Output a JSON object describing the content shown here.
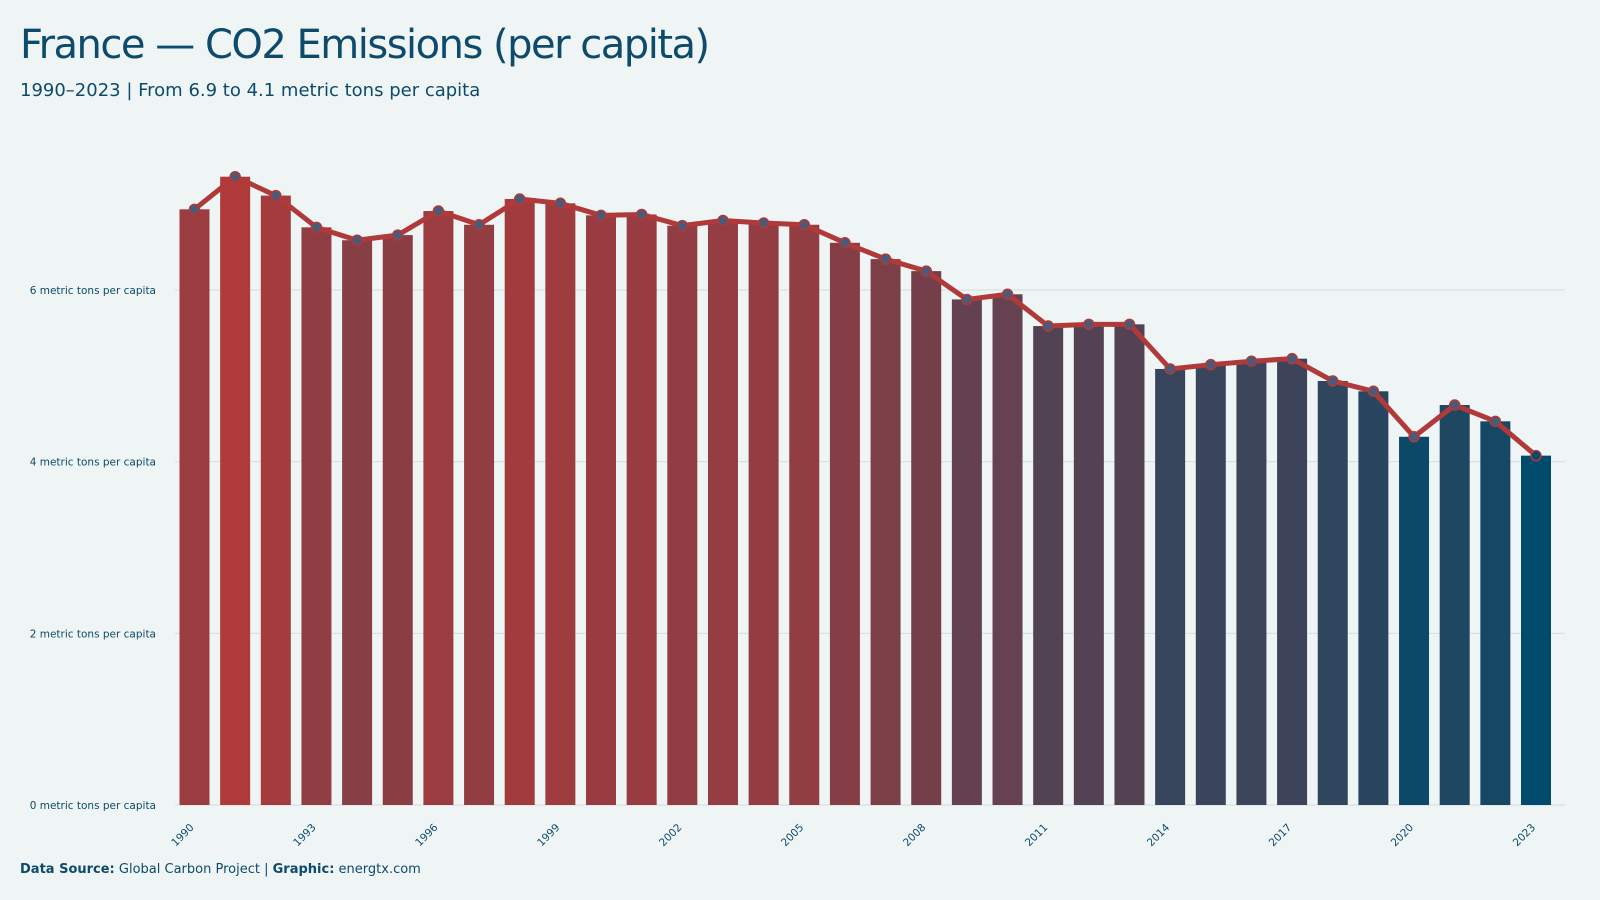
{
  "title": "France — CO2 Emissions (per capita)",
  "subtitle": "1990–2023 | From 6.9 to 4.1 metric tons per capita",
  "footer": {
    "source_label": "Data Source:",
    "source_value": "Global Carbon Project",
    "separator": "|",
    "graphic_label": "Graphic:",
    "graphic_value": "energtx.com"
  },
  "colors": {
    "background": "#eff5f5",
    "bar_start": "#b03a3a",
    "bar_end": "#004a6b",
    "line": "#b03a3a",
    "marker_fill": "#4a5a78",
    "text": "#0d4a6b",
    "grid": "#d5dcdf"
  },
  "chart_data": {
    "type": "bar",
    "categories": [
      "1990",
      "1991",
      "1992",
      "1993",
      "1994",
      "1995",
      "1996",
      "1997",
      "1998",
      "1999",
      "2000",
      "2001",
      "2002",
      "2003",
      "2004",
      "2005",
      "2006",
      "2007",
      "2008",
      "2009",
      "2010",
      "2011",
      "2012",
      "2013",
      "2014",
      "2015",
      "2016",
      "2017",
      "2018",
      "2019",
      "2020",
      "2021",
      "2022",
      "2023"
    ],
    "values": [
      6.94,
      7.32,
      7.1,
      6.73,
      6.58,
      6.64,
      6.92,
      6.76,
      7.06,
      7.01,
      6.87,
      6.88,
      6.75,
      6.81,
      6.78,
      6.76,
      6.55,
      6.36,
      6.22,
      5.89,
      5.95,
      5.58,
      5.6,
      5.6,
      5.08,
      5.13,
      5.17,
      5.2,
      4.94,
      4.82,
      4.29,
      4.66,
      4.47,
      4.07
    ],
    "series": [
      {
        "type": "bar",
        "values_ref": "values"
      },
      {
        "type": "line",
        "values_ref": "values"
      }
    ],
    "xticks": [
      "1990",
      "1993",
      "1996",
      "1999",
      "2002",
      "2005",
      "2008",
      "2011",
      "2014",
      "2017",
      "2020",
      "2023"
    ],
    "yticks": [
      {
        "value": 0,
        "label": "0 metric tons per capita"
      },
      {
        "value": 2,
        "label": "2 metric tons per capita"
      },
      {
        "value": 4,
        "label": "4 metric tons per capita"
      },
      {
        "value": 6,
        "label": "6 metric tons per capita"
      }
    ],
    "ylim": [
      0,
      7.45
    ],
    "grid": true,
    "xlabel": "",
    "ylabel": ""
  }
}
